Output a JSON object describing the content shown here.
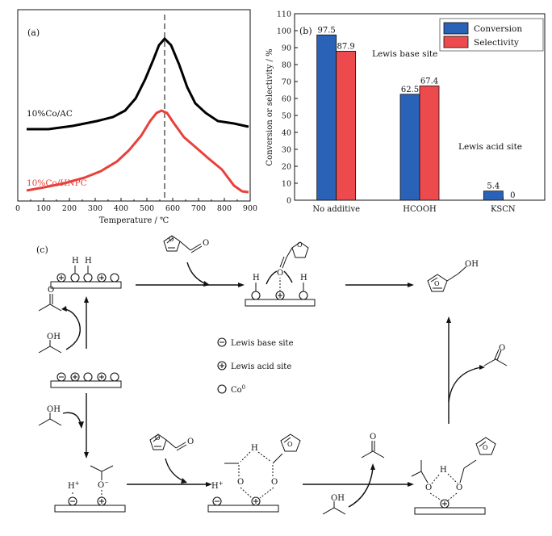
{
  "panel_a": {
    "label": "(a)",
    "series": [
      {
        "name": "10%Co/AC",
        "color": "#000000"
      },
      {
        "name": "10%Co/HNPC",
        "color": "#e8413c"
      }
    ],
    "x_label": "Temperature / ℃",
    "x_ticks": [
      "0",
      "100",
      "200",
      "300",
      "400",
      "500",
      "600",
      "700",
      "800",
      "900"
    ]
  },
  "chart_data": {
    "type": "bar",
    "title": "(b)",
    "categories": [
      "No additive",
      "HCOOH",
      "KSCN"
    ],
    "series": [
      {
        "name": "Conversion",
        "color": "#2a62b8",
        "values": [
          97.5,
          62.5,
          5.4
        ]
      },
      {
        "name": "Selectivity",
        "color": "#ec4a4c",
        "values": [
          87.9,
          67.4,
          0
        ]
      }
    ],
    "value_labels": [
      [
        "97.5",
        "87.9"
      ],
      [
        "62.5",
        "67.4"
      ],
      [
        "5.4",
        "0"
      ]
    ],
    "ylabel": "Conversion or selectivity / %",
    "xlabel": "",
    "ylim": [
      0,
      110
    ],
    "yticks": [
      "0",
      "10",
      "20",
      "30",
      "40",
      "50",
      "60",
      "70",
      "80",
      "90",
      "100",
      "110"
    ],
    "annotations": [
      "Lewis base site",
      "Lewis acid site"
    ],
    "legend_position": "top-right",
    "grid": false
  },
  "panel_c": {
    "label": "(c)",
    "legend": {
      "base": "Lewis base site",
      "acid": "Lewis acid site",
      "co": "Co",
      "co_sup": "0"
    },
    "atoms": {
      "h": "H",
      "o": "O",
      "oh": "OH",
      "h_plus": "H",
      "plus_sup": "+",
      "o_minus": "O",
      "minus_sup": "−"
    }
  }
}
